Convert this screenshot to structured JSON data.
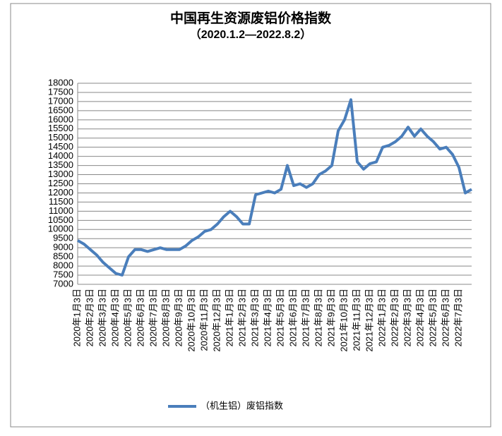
{
  "chart_data": {
    "type": "line",
    "title": "中国再生资源废铝价格指数",
    "subtitle": "（2020.1.2—2022.8.2）",
    "categories": [
      "2020年1月3日",
      null,
      "2020年2月3日",
      null,
      "2020年3月3日",
      null,
      "2020年4月3日",
      null,
      "2020年5月3日",
      null,
      "2020年6月3日",
      null,
      "2020年7月3日",
      null,
      "2020年8月3日",
      null,
      "2020年9月3日",
      null,
      "2020年10月3日",
      null,
      "2020年11月3日",
      null,
      "2020年12月3日",
      null,
      "2021年1月3日",
      null,
      "2021年2月3日",
      null,
      "2021年3月3日",
      null,
      "2021年4月3日",
      null,
      "2021年5月3日",
      null,
      "2021年6月3日",
      null,
      "2021年7月3日",
      null,
      "2021年8月3日",
      null,
      "2021年9月3日",
      null,
      "2021年10月3日",
      null,
      "2021年11月3日",
      null,
      "2021年12月3日",
      null,
      "2022年1月3日",
      null,
      "2022年2月3日",
      null,
      "2022年3月3日",
      null,
      "2022年4月3日",
      null,
      "2022年5月3日",
      null,
      "2022年6月3日",
      null,
      "2022年7月3日",
      null,
      null
    ],
    "series": [
      {
        "name": "（机生铝）废铝指数",
        "color": "#4a7ebb",
        "values": [
          9400,
          9200,
          8900,
          8600,
          8200,
          7900,
          7600,
          7500,
          8500,
          8900,
          8900,
          8800,
          8900,
          9000,
          8900,
          8900,
          8900,
          9100,
          9400,
          9600,
          9900,
          10000,
          10300,
          10700,
          11000,
          10700,
          10300,
          10300,
          11900,
          12000,
          12100,
          12000,
          12200,
          13500,
          12400,
          12500,
          12300,
          12500,
          13000,
          13200,
          13500,
          15400,
          16000,
          17100,
          13700,
          13300,
          13600,
          13700,
          14500,
          14600,
          14800,
          15100,
          15600,
          15100,
          15500,
          15100,
          14800,
          14400,
          14500,
          14100,
          13400,
          12000,
          12200
        ]
      }
    ],
    "ylim": [
      7000,
      18000
    ],
    "yticks": [
      7000,
      7500,
      8000,
      8500,
      9000,
      9500,
      10000,
      10500,
      11000,
      11500,
      12000,
      12500,
      13000,
      13500,
      14000,
      14500,
      15000,
      15500,
      16000,
      16500,
      17000,
      17500,
      18000
    ],
    "grid": true,
    "legend": "bottom"
  }
}
